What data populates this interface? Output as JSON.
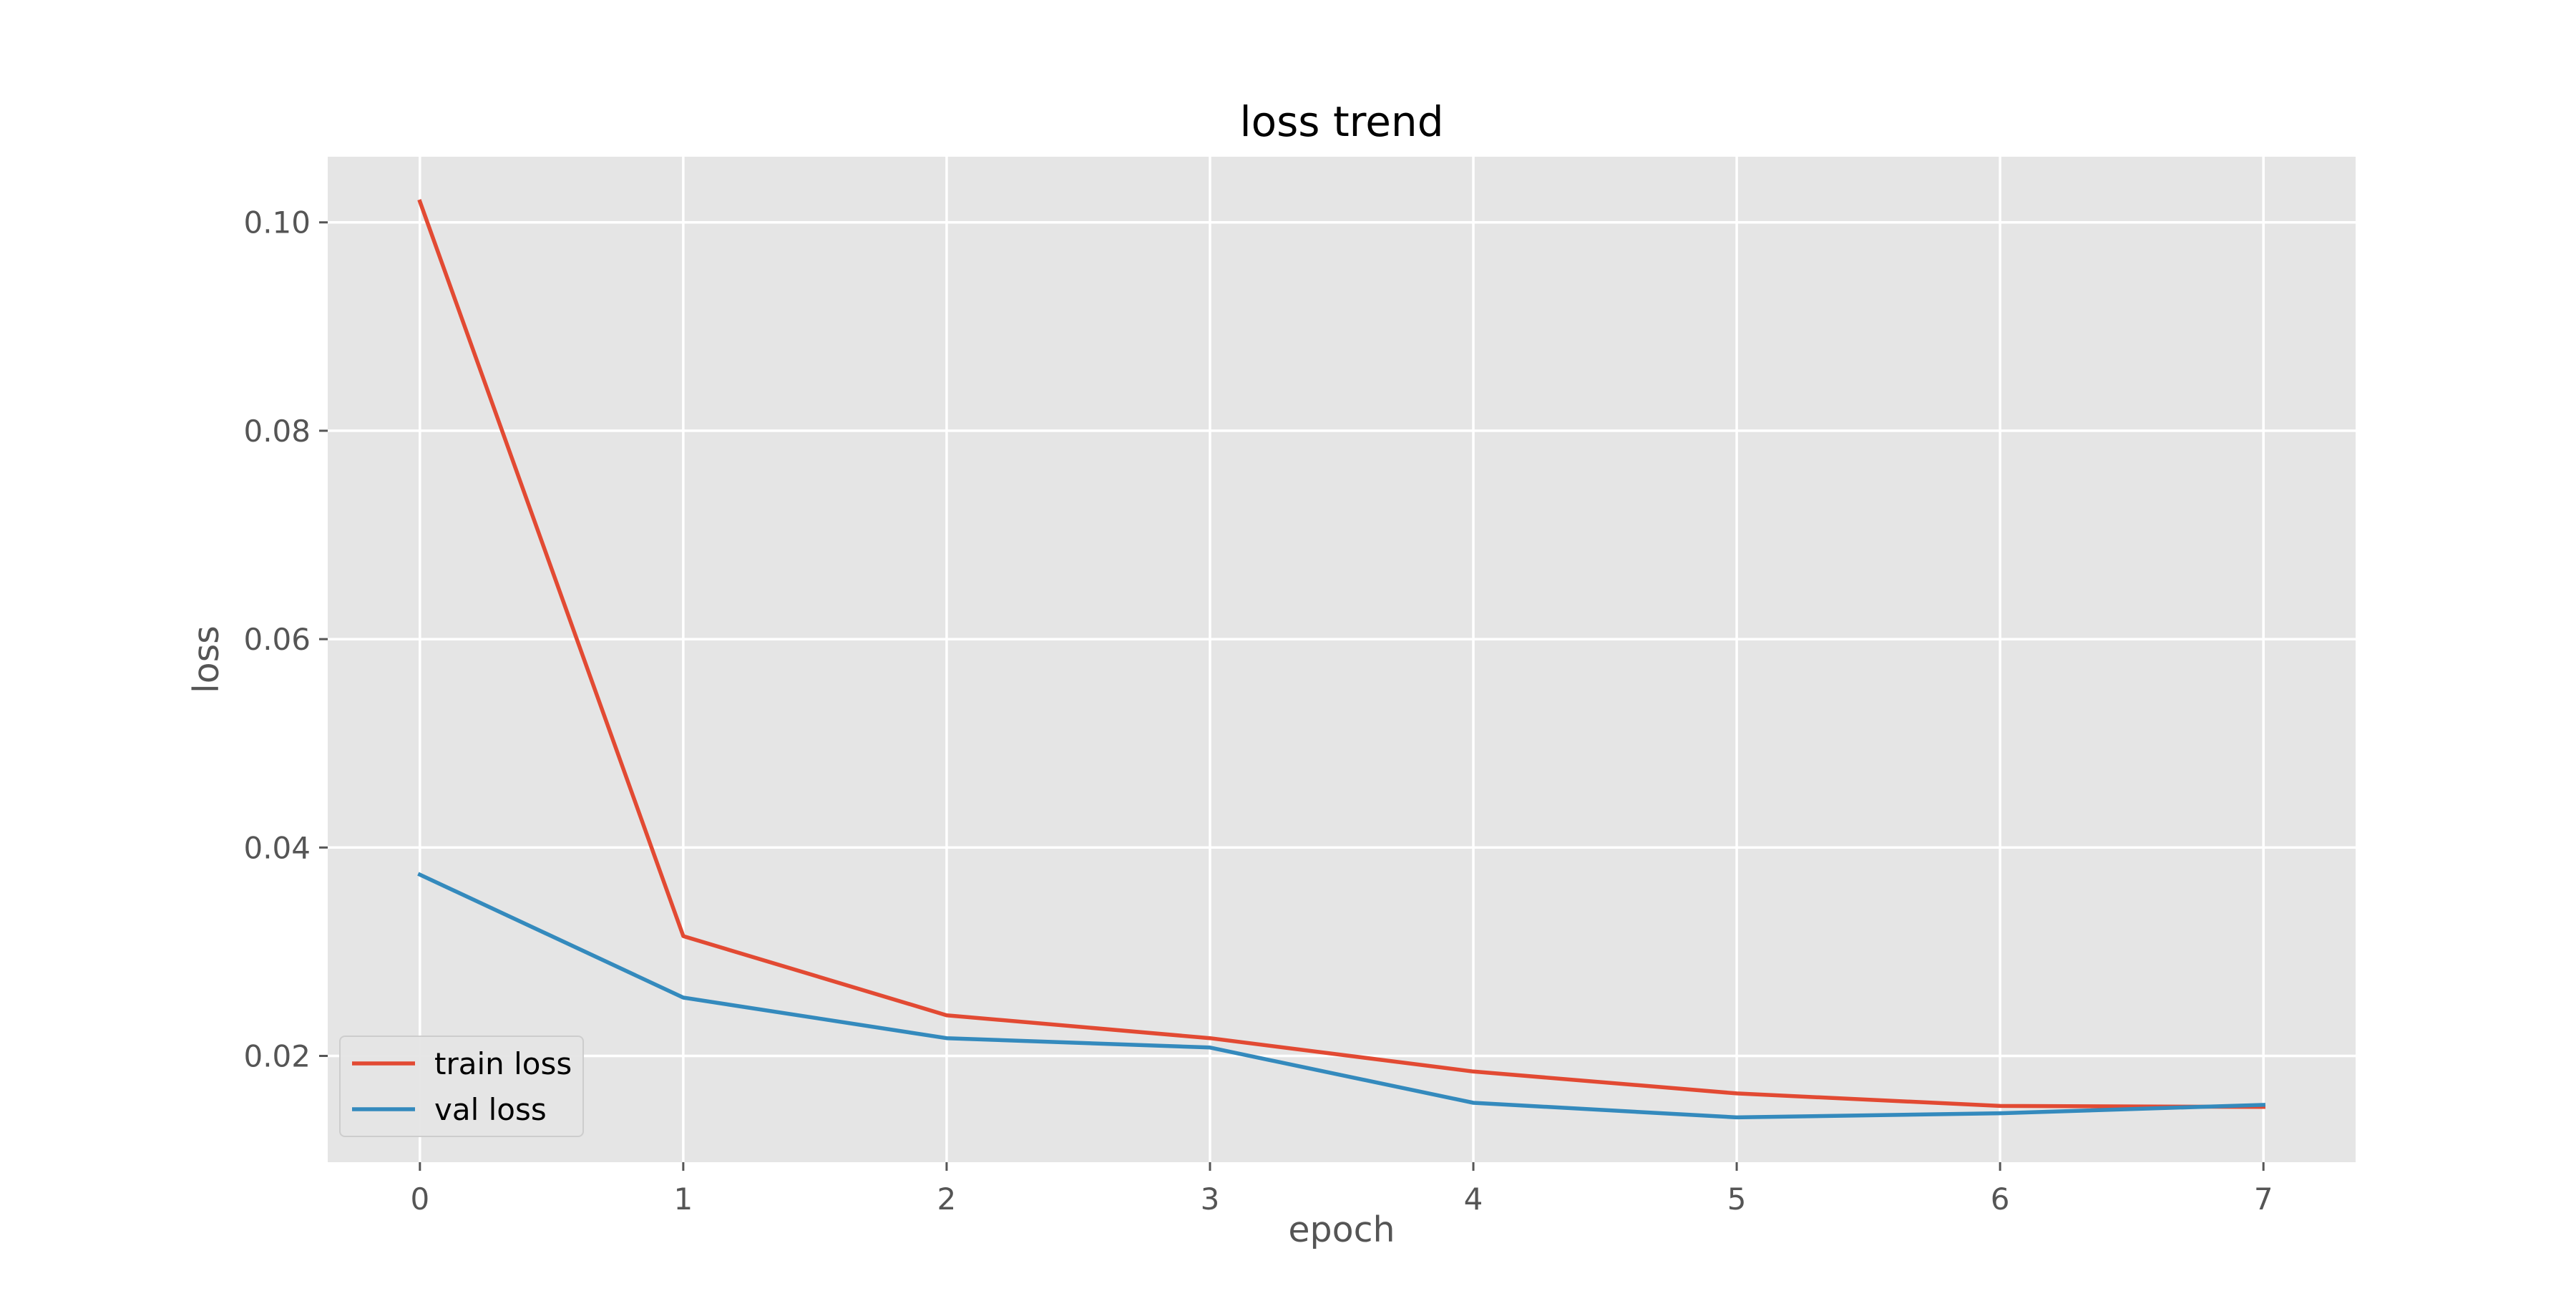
{
  "chart_data": {
    "type": "line",
    "title": "loss trend",
    "xlabel": "epoch",
    "ylabel": "loss",
    "x": [
      0,
      1,
      2,
      3,
      4,
      5,
      6,
      7
    ],
    "xlim": [
      -0.35,
      7.35
    ],
    "ylim": [
      0.0098,
      0.1063
    ],
    "xticks": [
      0,
      1,
      2,
      3,
      4,
      5,
      6,
      7
    ],
    "yticks": [
      0.02,
      0.04,
      0.06,
      0.08,
      0.1
    ],
    "ytick_labels": [
      "0.02",
      "0.04",
      "0.06",
      "0.08",
      "0.10"
    ],
    "grid": true,
    "legend_position": "lower-left",
    "series": [
      {
        "name": "train loss",
        "color": "#E24A33",
        "values": [
          0.102,
          0.0315,
          0.0239,
          0.0217,
          0.0185,
          0.0164,
          0.0152,
          0.0151
        ]
      },
      {
        "name": "val loss",
        "color": "#348ABD",
        "values": [
          0.0374,
          0.0256,
          0.0217,
          0.0208,
          0.0155,
          0.0141,
          0.0145,
          0.0153
        ]
      }
    ]
  }
}
